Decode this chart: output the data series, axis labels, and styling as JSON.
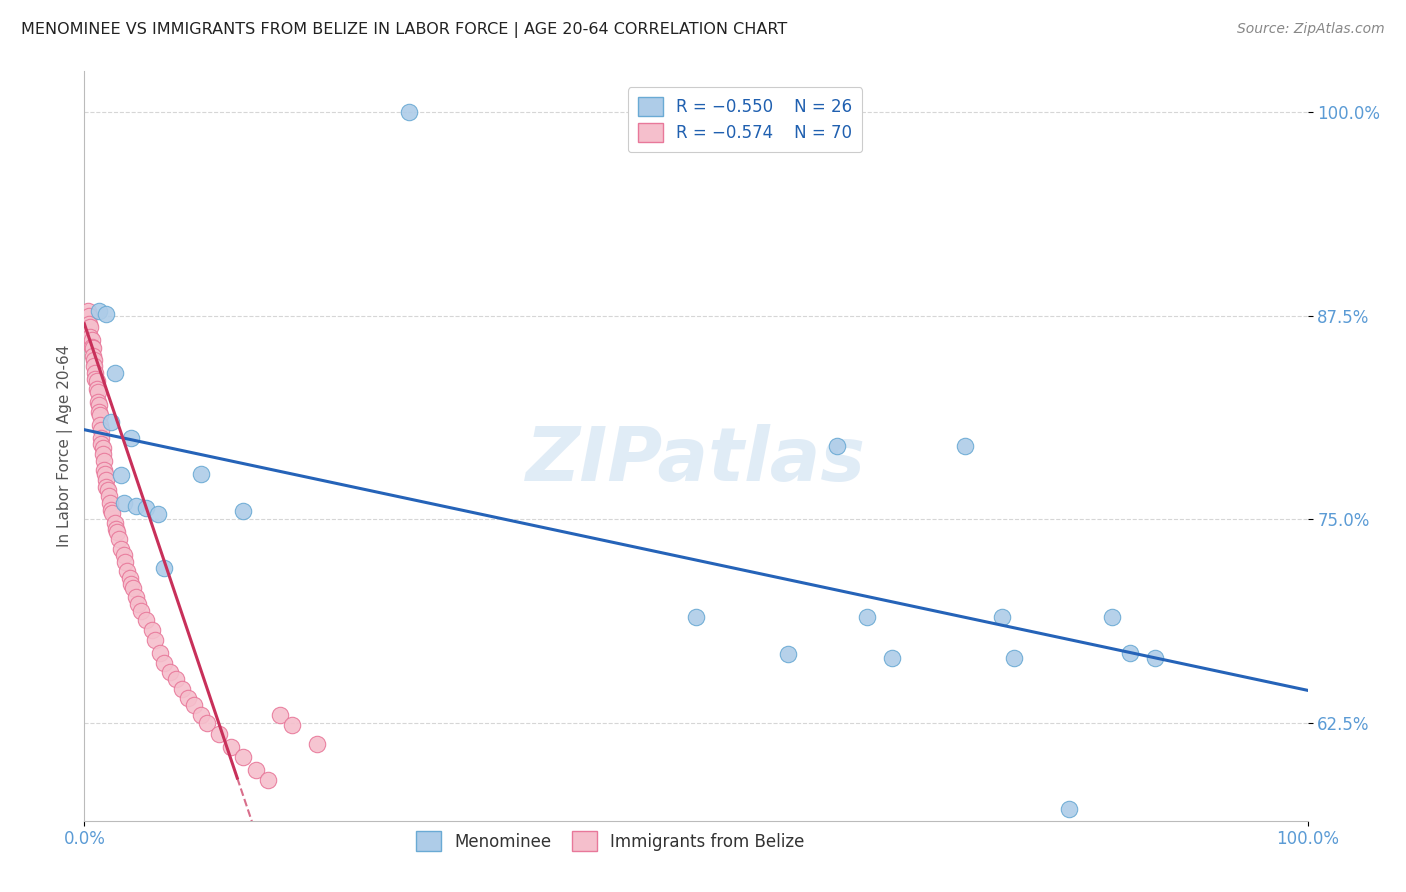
{
  "title": "MENOMINEE VS IMMIGRANTS FROM BELIZE IN LABOR FORCE | AGE 20-64 CORRELATION CHART",
  "source": "Source: ZipAtlas.com",
  "ylabel": "In Labor Force | Age 20-64",
  "xlim": [
    0.0,
    1.0
  ],
  "ylim": [
    0.565,
    1.025
  ],
  "yticks": [
    0.625,
    0.75,
    0.875,
    1.0
  ],
  "ytick_labels": [
    "62.5%",
    "75.0%",
    "87.5%",
    "100.0%"
  ],
  "legend_r1": "R = -0.550",
  "legend_n1": "N = 26",
  "legend_r2": "R = -0.574",
  "legend_n2": "N = 70",
  "menominee_color": "#aecce8",
  "menominee_edge": "#6aaad4",
  "belize_color": "#f5bfcc",
  "belize_edge": "#e8789a",
  "trendline_menominee_color": "#2563b8",
  "trendline_belize_color": "#c8305a",
  "watermark": "ZIPatlas",
  "menominee_x": [
    0.012,
    0.018,
    0.022,
    0.025,
    0.03,
    0.032,
    0.038,
    0.042,
    0.05,
    0.06,
    0.065,
    0.095,
    0.13,
    0.265,
    0.5,
    0.575,
    0.615,
    0.64,
    0.66,
    0.72,
    0.75,
    0.76,
    0.805,
    0.84,
    0.855,
    0.875
  ],
  "menominee_y": [
    0.878,
    0.876,
    0.81,
    0.84,
    0.777,
    0.76,
    0.8,
    0.758,
    0.757,
    0.753,
    0.72,
    0.778,
    0.755,
    1.0,
    0.69,
    0.667,
    0.795,
    0.69,
    0.665,
    0.795,
    0.69,
    0.665,
    0.572,
    0.69,
    0.668,
    0.665
  ],
  "belize_x": [
    0.003,
    0.004,
    0.004,
    0.005,
    0.005,
    0.006,
    0.006,
    0.007,
    0.007,
    0.008,
    0.008,
    0.009,
    0.009,
    0.01,
    0.01,
    0.011,
    0.011,
    0.012,
    0.012,
    0.013,
    0.013,
    0.014,
    0.014,
    0.014,
    0.015,
    0.015,
    0.016,
    0.016,
    0.017,
    0.018,
    0.018,
    0.019,
    0.02,
    0.021,
    0.022,
    0.023,
    0.025,
    0.026,
    0.027,
    0.028,
    0.03,
    0.032,
    0.033,
    0.035,
    0.037,
    0.038,
    0.04,
    0.042,
    0.044,
    0.046,
    0.05,
    0.055,
    0.058,
    0.062,
    0.065,
    0.07,
    0.075,
    0.08,
    0.085,
    0.09,
    0.095,
    0.1,
    0.11,
    0.12,
    0.13,
    0.14,
    0.15,
    0.16,
    0.17,
    0.19
  ],
  "belize_y": [
    0.878,
    0.875,
    0.87,
    0.868,
    0.862,
    0.86,
    0.856,
    0.855,
    0.85,
    0.848,
    0.844,
    0.84,
    0.836,
    0.835,
    0.83,
    0.828,
    0.822,
    0.82,
    0.816,
    0.814,
    0.808,
    0.805,
    0.8,
    0.796,
    0.794,
    0.79,
    0.786,
    0.78,
    0.778,
    0.774,
    0.77,
    0.768,
    0.764,
    0.76,
    0.756,
    0.754,
    0.748,
    0.744,
    0.742,
    0.738,
    0.732,
    0.728,
    0.724,
    0.718,
    0.714,
    0.71,
    0.708,
    0.702,
    0.698,
    0.694,
    0.688,
    0.682,
    0.676,
    0.668,
    0.662,
    0.656,
    0.652,
    0.646,
    0.64,
    0.636,
    0.63,
    0.625,
    0.618,
    0.61,
    0.604,
    0.596,
    0.59,
    0.63,
    0.624,
    0.612
  ]
}
